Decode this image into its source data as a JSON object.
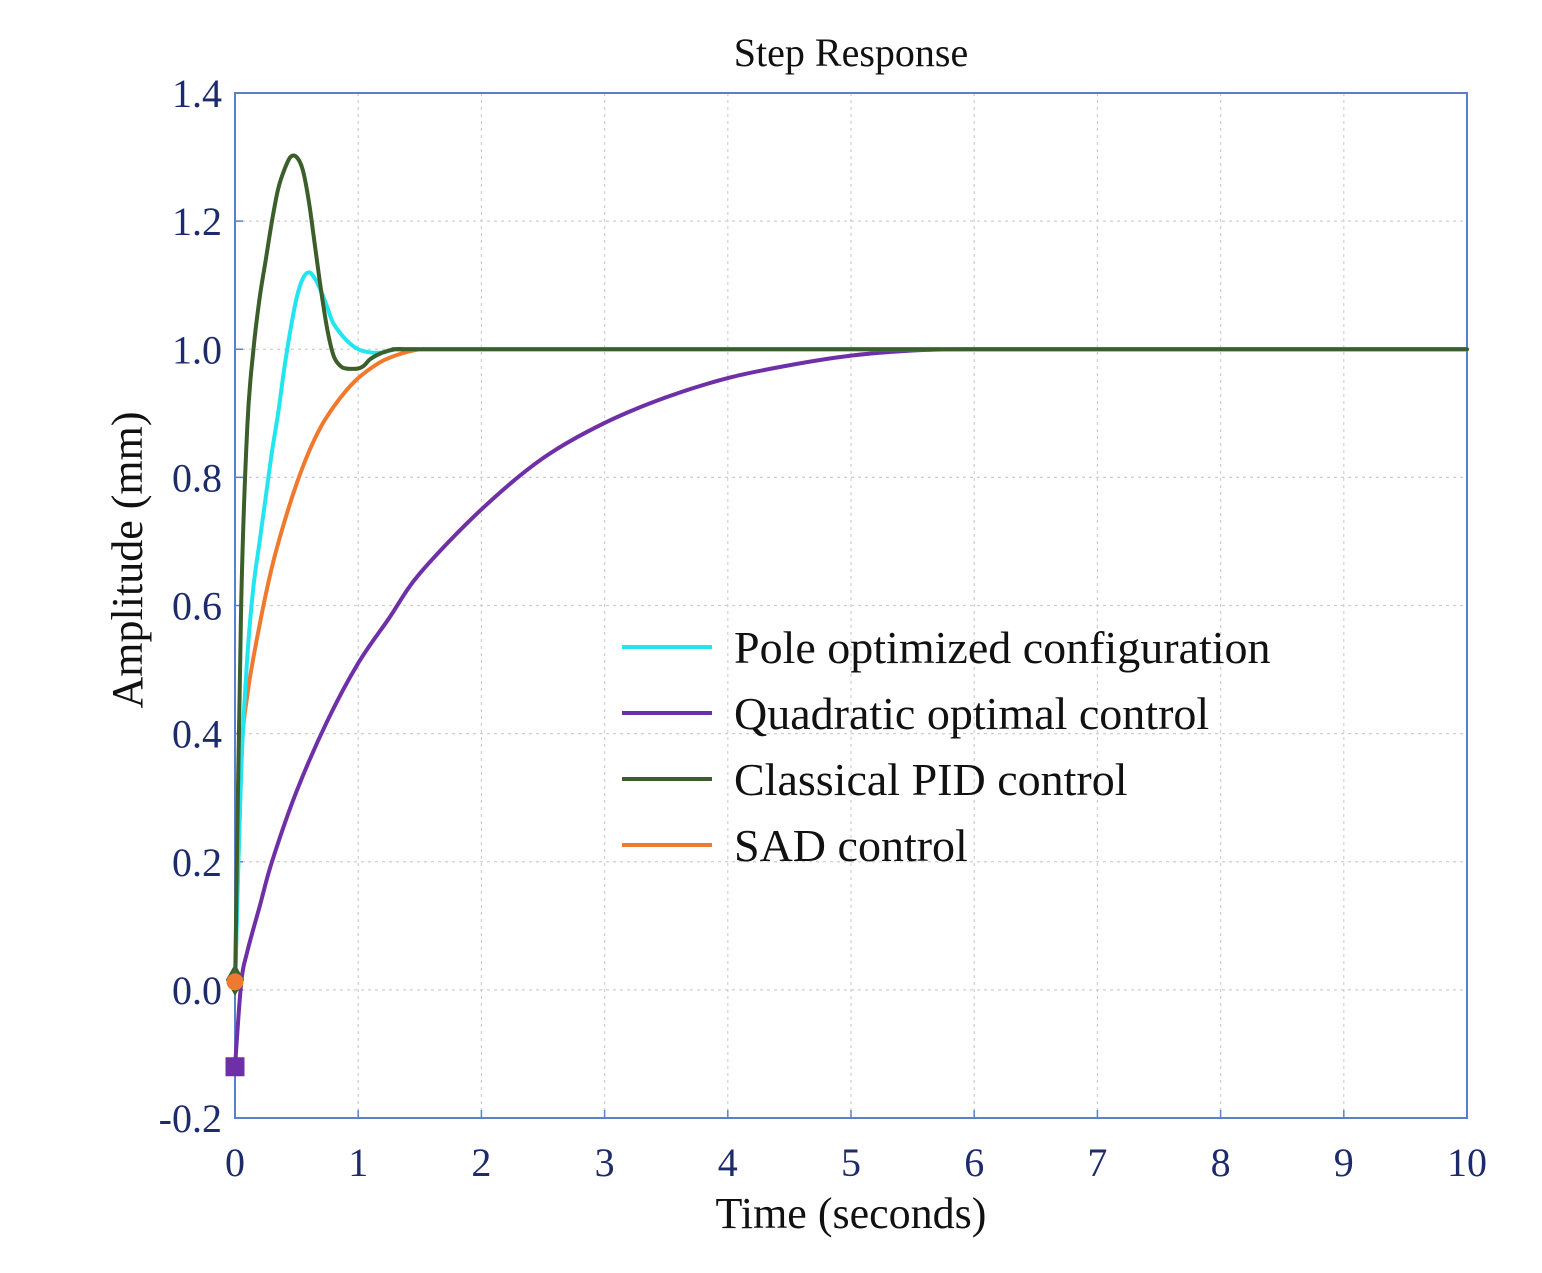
{
  "chart_data": {
    "type": "line",
    "title": "Step Response",
    "xlabel": "Time (seconds)",
    "ylabel": "Amplitude (mm)",
    "xlim": [
      0,
      10
    ],
    "ylim": [
      -0.2,
      1.4
    ],
    "xticks": [
      0,
      1,
      2,
      3,
      4,
      5,
      6,
      7,
      8,
      9,
      10
    ],
    "xtick_labels": [
      "0",
      "1",
      "2",
      "3",
      "4",
      "5",
      "6",
      "7",
      "8",
      "9",
      "10"
    ],
    "yticks": [
      -0.2,
      0,
      0.2,
      0.4,
      0.6,
      0.8,
      1.0,
      1.2,
      1.4
    ],
    "ytick_labels": [
      "-0.2",
      "0.0",
      "0.2",
      "0.4",
      "0.6",
      "0.8",
      "1.0",
      "1.2",
      "1.4"
    ],
    "grid": true,
    "legend_position": "center-right",
    "series": [
      {
        "name": "Pole optimized configuration",
        "color": "#22e5f0",
        "x": [
          0,
          0.05,
          0.1,
          0.15,
          0.2,
          0.25,
          0.3,
          0.35,
          0.4,
          0.45,
          0.5,
          0.55,
          0.6,
          0.65,
          0.7,
          0.75,
          0.8,
          0.9,
          1.0,
          1.1,
          1.2,
          1.3,
          1.4,
          1.6,
          2.0,
          10
        ],
        "y": [
          0,
          0.34,
          0.52,
          0.63,
          0.7,
          0.77,
          0.84,
          0.9,
          0.97,
          1.03,
          1.08,
          1.11,
          1.12,
          1.11,
          1.09,
          1.065,
          1.04,
          1.015,
          1.0,
          0.995,
          0.995,
          1.0,
          1.0,
          1.0,
          1.0,
          1.0
        ],
        "marker": "diamond"
      },
      {
        "name": "Quadratic optimal control",
        "color": "#6f2fa6",
        "x": [
          0,
          0.05,
          0.1,
          0.2,
          0.3,
          0.5,
          0.75,
          1.0,
          1.25,
          1.5,
          2.0,
          2.5,
          3.0,
          3.5,
          4.0,
          4.5,
          5.0,
          5.5,
          6.0,
          7.0,
          8.0,
          9.0,
          10.0
        ],
        "y": [
          -0.12,
          0.01,
          0.06,
          0.13,
          0.2,
          0.31,
          0.42,
          0.51,
          0.58,
          0.65,
          0.75,
          0.83,
          0.885,
          0.925,
          0.955,
          0.975,
          0.99,
          0.998,
          1.0,
          1.0,
          1.0,
          1.0,
          1.0
        ],
        "marker": "square"
      },
      {
        "name": "Classical PID control",
        "color": "#3b5e2b",
        "x": [
          0,
          0.05,
          0.1,
          0.15,
          0.2,
          0.25,
          0.3,
          0.35,
          0.4,
          0.45,
          0.5,
          0.55,
          0.6,
          0.65,
          0.7,
          0.75,
          0.8,
          0.85,
          0.9,
          1.0,
          1.05,
          1.1,
          1.2,
          1.3,
          1.4,
          1.6,
          2.0,
          10
        ],
        "y": [
          0,
          0.6,
          0.88,
          1.0,
          1.08,
          1.14,
          1.2,
          1.25,
          1.28,
          1.3,
          1.3,
          1.28,
          1.23,
          1.16,
          1.09,
          1.03,
          0.99,
          0.975,
          0.97,
          0.97,
          0.975,
          0.985,
          0.995,
          1.0,
          1.0,
          1.0,
          1.0,
          1.0
        ],
        "marker": "diamond"
      },
      {
        "name": "SAD control",
        "color": "#ef7a2e",
        "x": [
          0,
          0.05,
          0.1,
          0.2,
          0.3,
          0.4,
          0.5,
          0.6,
          0.7,
          0.8,
          0.9,
          1.0,
          1.1,
          1.2,
          1.3,
          1.4,
          1.5,
          1.6,
          2.0,
          10
        ],
        "y": [
          0,
          0.35,
          0.46,
          0.57,
          0.66,
          0.73,
          0.79,
          0.84,
          0.88,
          0.91,
          0.935,
          0.955,
          0.97,
          0.982,
          0.99,
          0.996,
          1.0,
          1.0,
          1.0,
          1.0
        ],
        "marker": "circle"
      }
    ]
  }
}
